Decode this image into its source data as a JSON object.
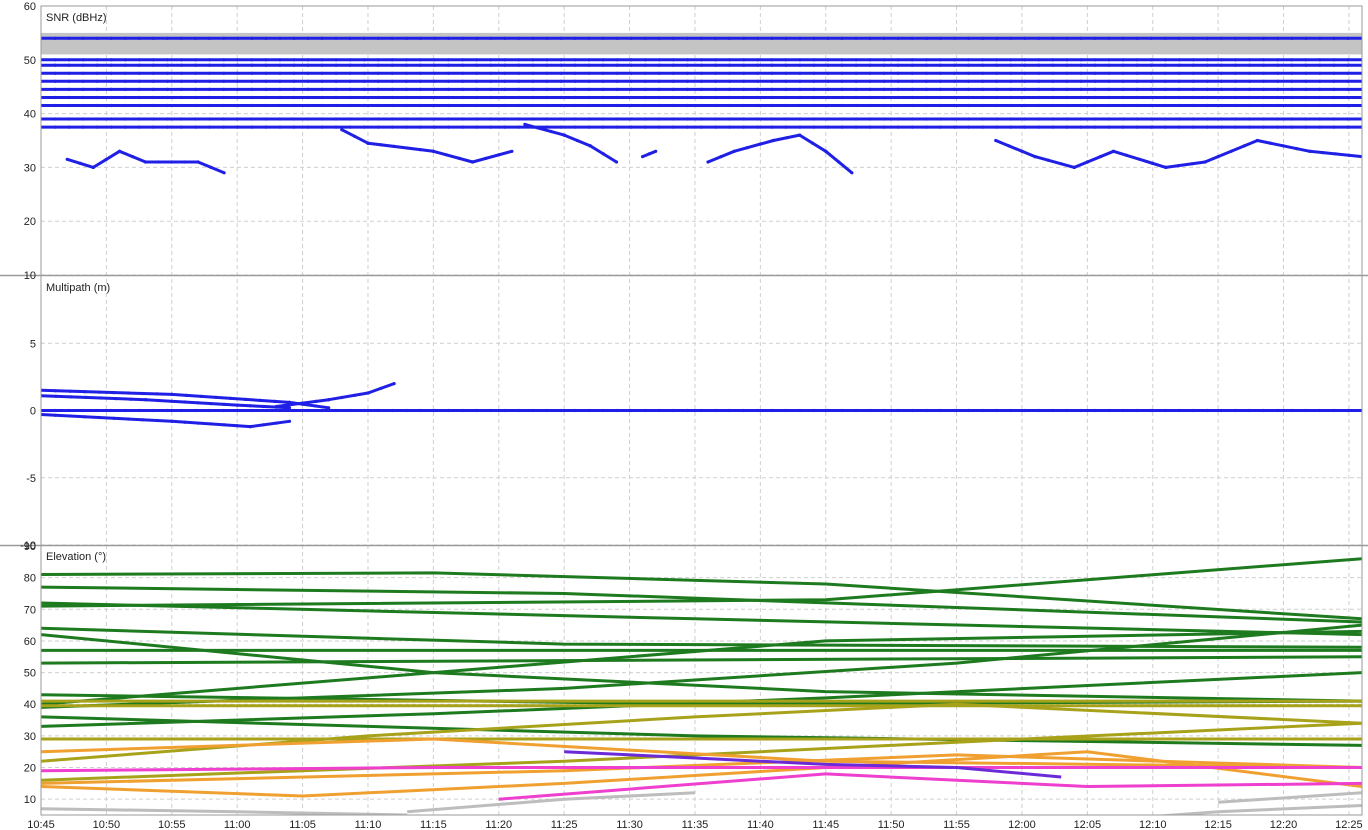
{
  "colors": {
    "snr": "#1f1fe6",
    "snr_band": "#c4c4c4",
    "multipath": "#1f1fe6",
    "elev_green": "#1e7a1e",
    "elev_olive": "#a8a21a",
    "elev_orange": "#f0a030",
    "elev_magenta": "#ee3fcf",
    "elev_purple": "#6a2ad8",
    "elev_gray": "#bdbdbd",
    "grid": "#cfcfcf",
    "divider": "#9a9a9a"
  },
  "x_ticks": [
    "10:45",
    "10:50",
    "10:55",
    "11:00",
    "11:05",
    "11:10",
    "11:15",
    "11:20",
    "11:25",
    "11:30",
    "11:35",
    "11:40",
    "11:45",
    "11:50",
    "11:55",
    "12:00",
    "12:05",
    "12:10",
    "12:15",
    "12:20",
    "12:25"
  ],
  "chart_data": [
    {
      "type": "scatter",
      "title": "SNR (dBHz)",
      "ylim": [
        10,
        60
      ],
      "y_ticks": [
        "60",
        "50",
        "40",
        "30",
        "20",
        "10"
      ],
      "xlim": [
        "10:45",
        "12:26"
      ],
      "grid": true,
      "series": [
        {
          "values": [
            [
              0,
              54
            ],
            [
              101,
              54
            ]
          ],
          "band": [
            51,
            55
          ]
        },
        {
          "values": [
            [
              0,
              50
            ],
            [
              101,
              50
            ]
          ]
        },
        {
          "values": [
            [
              0,
              49
            ],
            [
              101,
              49
            ]
          ]
        },
        {
          "values": [
            [
              0,
              47.5
            ],
            [
              101,
              47.5
            ]
          ]
        },
        {
          "values": [
            [
              0,
              46
            ],
            [
              101,
              46
            ]
          ]
        },
        {
          "values": [
            [
              0,
              44.5
            ],
            [
              101,
              44.5
            ]
          ]
        },
        {
          "values": [
            [
              0,
              43
            ],
            [
              101,
              43
            ]
          ]
        },
        {
          "values": [
            [
              0,
              41.5
            ],
            [
              101,
              41.5
            ]
          ]
        },
        {
          "values": [
            [
              0,
              39
            ],
            [
              101,
              39
            ]
          ]
        },
        {
          "values": [
            [
              0,
              37.5
            ],
            [
              101,
              37.5
            ]
          ]
        },
        {
          "values": [
            [
              2,
              31.5
            ],
            [
              4,
              30
            ],
            [
              6,
              33
            ],
            [
              8,
              31
            ],
            [
              12,
              31
            ],
            [
              14,
              29
            ]
          ]
        },
        {
          "values": [
            [
              23,
              37
            ],
            [
              25,
              34.5
            ],
            [
              30,
              33
            ],
            [
              33,
              31
            ],
            [
              36,
              33
            ]
          ]
        },
        {
          "values": [
            [
              37,
              38
            ],
            [
              40,
              36
            ],
            [
              42,
              34
            ],
            [
              44,
              31
            ]
          ]
        },
        {
          "values": [
            [
              46,
              32
            ],
            [
              47,
              33
            ]
          ]
        },
        {
          "values": [
            [
              51,
              31
            ],
            [
              53,
              33
            ],
            [
              56,
              35
            ],
            [
              58,
              36
            ],
            [
              60,
              33
            ],
            [
              62,
              29
            ]
          ]
        },
        {
          "values": [
            [
              73,
              35
            ],
            [
              76,
              32
            ],
            [
              79,
              30
            ],
            [
              82,
              33
            ],
            [
              86,
              30
            ],
            [
              89,
              31
            ],
            [
              93,
              35
            ],
            [
              97,
              33
            ],
            [
              101,
              32
            ]
          ]
        }
      ]
    },
    {
      "type": "scatter",
      "title": "Multipath (m)",
      "ylim": [
        -10,
        10
      ],
      "y_ticks": [
        "5",
        "0",
        "-5",
        "-10"
      ],
      "grid": true,
      "series": [
        {
          "values": [
            [
              0,
              1.5
            ],
            [
              10,
              1.2
            ],
            [
              19,
              0.6
            ],
            [
              22,
              0.2
            ]
          ]
        },
        {
          "values": [
            [
              0,
              1.1
            ],
            [
              8,
              0.8
            ],
            [
              15,
              0.4
            ],
            [
              19,
              0.2
            ]
          ]
        },
        {
          "values": [
            [
              0,
              -0.3
            ],
            [
              10,
              -0.8
            ],
            [
              16,
              -1.2
            ],
            [
              19,
              -0.8
            ]
          ]
        },
        {
          "values": [
            [
              18,
              0.3
            ],
            [
              22,
              0.8
            ],
            [
              25,
              1.3
            ],
            [
              27,
              2
            ]
          ]
        },
        {
          "values": [
            [
              0,
              0
            ],
            [
              101,
              0
            ]
          ]
        }
      ]
    },
    {
      "type": "line",
      "title": "Elevation (°)",
      "ylim": [
        5,
        90
      ],
      "y_ticks": [
        "80",
        "70",
        "60",
        "50",
        "40",
        "30",
        "20",
        "10"
      ],
      "y_top_label": "90",
      "grid": true,
      "series": [
        {
          "color": "elev_green",
          "values": [
            [
              0,
              81
            ],
            [
              30,
              81.5
            ],
            [
              60,
              78
            ],
            [
              101,
              67
            ]
          ]
        },
        {
          "color": "elev_green",
          "values": [
            [
              0,
              77
            ],
            [
              40,
              75
            ],
            [
              101,
              66
            ]
          ]
        },
        {
          "color": "elev_green",
          "values": [
            [
              0,
              71
            ],
            [
              60,
              73
            ],
            [
              101,
              86
            ]
          ]
        },
        {
          "color": "elev_green",
          "values": [
            [
              0,
              72
            ],
            [
              50,
              67
            ],
            [
              101,
              62
            ]
          ]
        },
        {
          "color": "elev_green",
          "values": [
            [
              0,
              64
            ],
            [
              40,
              59
            ],
            [
              101,
              58
            ]
          ]
        },
        {
          "color": "elev_green",
          "values": [
            [
              0,
              62
            ],
            [
              30,
              50
            ],
            [
              60,
              44
            ],
            [
              101,
              41
            ]
          ]
        },
        {
          "color": "elev_green",
          "values": [
            [
              0,
              57
            ],
            [
              101,
              57
            ]
          ]
        },
        {
          "color": "elev_green",
          "values": [
            [
              0,
              53
            ],
            [
              101,
              55
            ]
          ]
        },
        {
          "color": "elev_green",
          "values": [
            [
              0,
              40
            ],
            [
              30,
              50
            ],
            [
              60,
              60
            ],
            [
              101,
              63
            ]
          ]
        },
        {
          "color": "elev_green",
          "values": [
            [
              0,
              43
            ],
            [
              50,
              40
            ],
            [
              101,
              41
            ]
          ]
        },
        {
          "color": "elev_green",
          "values": [
            [
              0,
              39
            ],
            [
              40,
              45
            ],
            [
              70,
              53
            ],
            [
              101,
              65
            ]
          ]
        },
        {
          "color": "elev_green",
          "values": [
            [
              0,
              36
            ],
            [
              50,
              30
            ],
            [
              101,
              27
            ]
          ]
        },
        {
          "color": "elev_green",
          "values": [
            [
              0,
              33
            ],
            [
              30,
              37
            ],
            [
              60,
              42
            ],
            [
              101,
              50
            ]
          ]
        },
        {
          "color": "elev_olive",
          "values": [
            [
              0,
              39.5
            ],
            [
              101,
              39.5
            ]
          ]
        },
        {
          "color": "elev_olive",
          "values": [
            [
              0,
              41
            ],
            [
              101,
              41
            ]
          ]
        },
        {
          "color": "elev_olive",
          "values": [
            [
              0,
              29
            ],
            [
              101,
              29
            ]
          ]
        },
        {
          "color": "elev_olive",
          "values": [
            [
              0,
              22
            ],
            [
              25,
              30
            ],
            [
              50,
              36
            ],
            [
              70,
              40
            ],
            [
              101,
              34
            ]
          ]
        },
        {
          "color": "elev_olive",
          "values": [
            [
              0,
              16
            ],
            [
              40,
              22
            ],
            [
              70,
              28
            ],
            [
              101,
              34
            ]
          ]
        },
        {
          "color": "elev_orange",
          "values": [
            [
              0,
              25
            ],
            [
              30,
              29
            ],
            [
              60,
              22
            ],
            [
              101,
              20
            ]
          ]
        },
        {
          "color": "elev_orange",
          "values": [
            [
              0,
              15
            ],
            [
              40,
              19
            ],
            [
              70,
              24
            ],
            [
              101,
              20
            ]
          ]
        },
        {
          "color": "elev_orange",
          "values": [
            [
              0,
              14
            ],
            [
              20,
              11
            ],
            [
              40,
              15
            ],
            [
              60,
              20
            ],
            [
              80,
              25
            ],
            [
              101,
              14
            ]
          ]
        },
        {
          "color": "elev_magenta",
          "values": [
            [
              0,
              19
            ],
            [
              30,
              20
            ],
            [
              60,
              20
            ],
            [
              101,
              20
            ]
          ]
        },
        {
          "color": "elev_magenta",
          "values": [
            [
              35,
              10
            ],
            [
              60,
              18
            ],
            [
              80,
              14
            ],
            [
              101,
              15
            ]
          ]
        },
        {
          "color": "elev_purple",
          "values": [
            [
              40,
              25
            ],
            [
              50,
              23
            ],
            [
              60,
              21
            ],
            [
              70,
              20
            ],
            [
              78,
              17
            ]
          ]
        },
        {
          "color": "elev_gray",
          "values": [
            [
              0,
              7
            ],
            [
              15,
              6
            ],
            [
              28,
              5
            ]
          ]
        },
        {
          "color": "elev_gray",
          "values": [
            [
              28,
              6
            ],
            [
              40,
              10
            ],
            [
              50,
              12
            ]
          ]
        },
        {
          "color": "elev_gray",
          "values": [
            [
              80,
              3
            ],
            [
              90,
              6
            ],
            [
              101,
              8
            ]
          ]
        },
        {
          "color": "elev_gray",
          "values": [
            [
              90,
              9
            ],
            [
              101,
              12
            ]
          ]
        }
      ]
    }
  ]
}
